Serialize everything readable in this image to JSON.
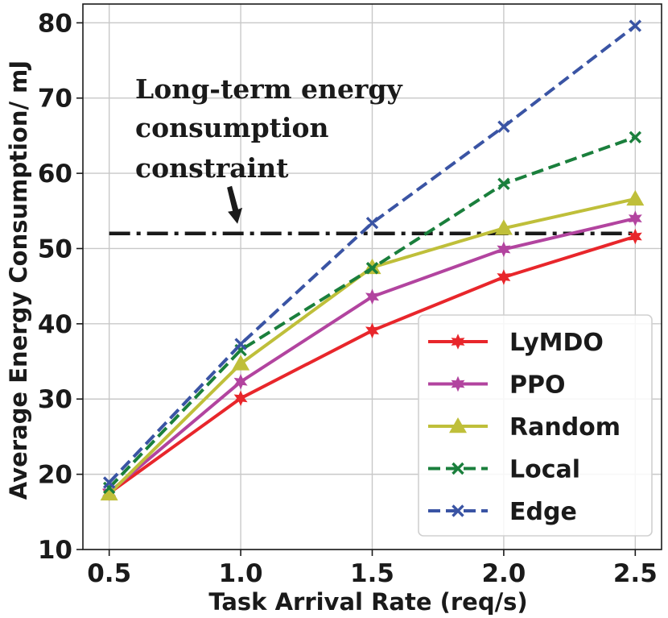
{
  "chart_data": {
    "type": "line",
    "title": "",
    "xlabel": "Task Arrival Rate (req/s)",
    "ylabel": "Average Energy Consumption/ mJ",
    "x": [
      0.5,
      1.0,
      1.5,
      2.0,
      2.5
    ],
    "x_tick_labels": [
      "0.5",
      "1.0",
      "1.5",
      "2.0",
      "2.5"
    ],
    "y_ticks": [
      10,
      20,
      30,
      40,
      50,
      60,
      70,
      80
    ],
    "xlim": [
      0.4,
      2.6
    ],
    "ylim": [
      10,
      82.5
    ],
    "grid": true,
    "legend_position": "bottom-right",
    "series": [
      {
        "name": "LyMDO",
        "values": [
          17.5,
          30.1,
          39.1,
          46.2,
          51.6
        ],
        "color": "#e8262b",
        "marker": "star",
        "linestyle": "solid"
      },
      {
        "name": "PPO",
        "values": [
          17.6,
          32.3,
          43.6,
          49.9,
          54.0
        ],
        "color": "#b2449f",
        "marker": "star",
        "linestyle": "solid"
      },
      {
        "name": "Random",
        "values": [
          17.4,
          34.7,
          47.5,
          52.7,
          56.6
        ],
        "color": "#bfbf3a",
        "marker": "triangle",
        "linestyle": "solid"
      },
      {
        "name": "Local",
        "values": [
          18.2,
          36.5,
          47.4,
          58.6,
          64.8
        ],
        "color": "#1a7f3c",
        "marker": "x",
        "linestyle": "dashed"
      },
      {
        "name": "Edge",
        "values": [
          18.9,
          37.3,
          53.4,
          66.2,
          79.6
        ],
        "color": "#3a54a4",
        "marker": "x",
        "linestyle": "dashed"
      }
    ],
    "constraint": {
      "value": 52,
      "color": "#1a1a1a",
      "linestyle": "dashdot"
    },
    "annotation": {
      "lines": [
        "Long-term energy",
        "consumption",
        "constraint"
      ],
      "arrow_target": {
        "x": 1.0,
        "y": 52
      }
    }
  }
}
